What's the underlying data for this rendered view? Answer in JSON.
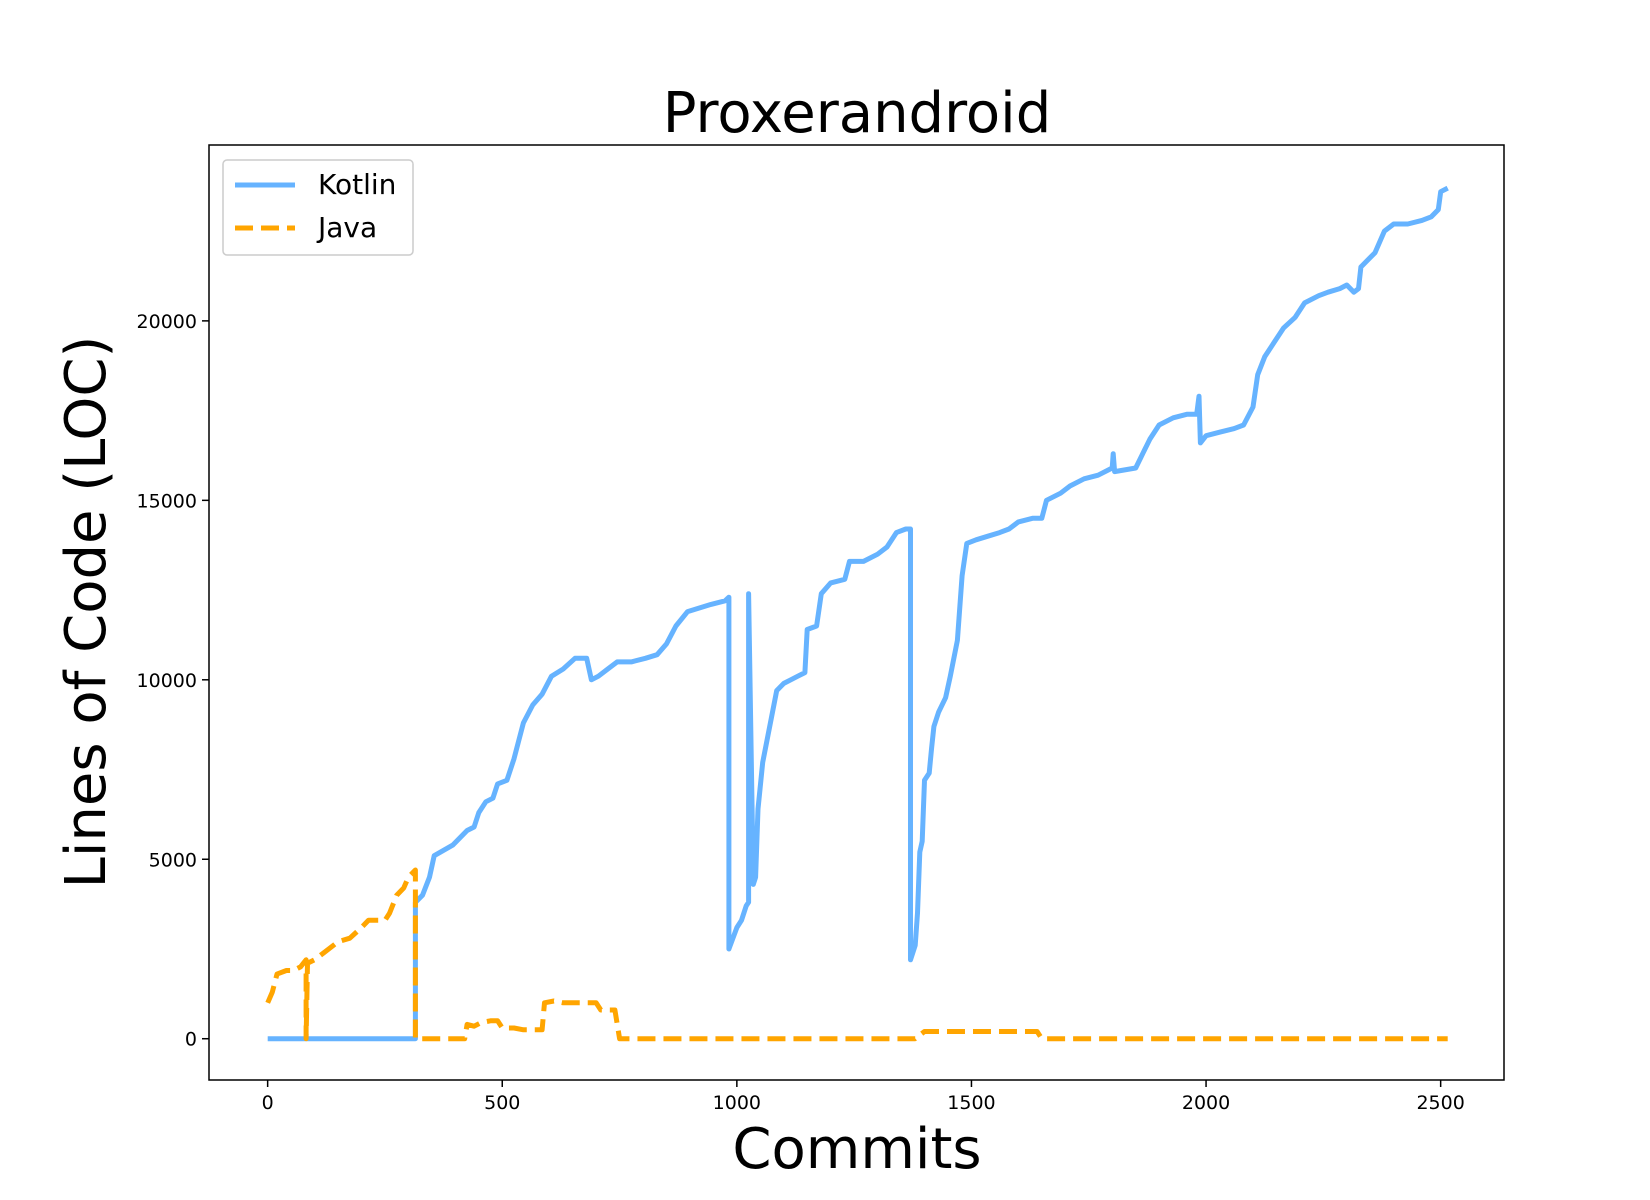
{
  "chart_data": {
    "type": "line",
    "title": "Proxerandroid",
    "xlabel": "Commits",
    "ylabel": "Lines of Code (LOC)",
    "xlim": [
      -125,
      2635
    ],
    "ylim": [
      -1150,
      24900
    ],
    "xticks": [
      0,
      500,
      1000,
      1500,
      2000,
      2500
    ],
    "yticks": [
      0,
      5000,
      10000,
      15000,
      20000
    ],
    "grid": false,
    "legend_position": "top-left",
    "series": [
      {
        "name": "Kotlin",
        "color": "#66b3ff",
        "style": "solid",
        "points": [
          [
            0,
            0
          ],
          [
            315,
            0
          ],
          [
            315,
            3800
          ],
          [
            330,
            4000
          ],
          [
            345,
            4500
          ],
          [
            355,
            5100
          ],
          [
            375,
            5250
          ],
          [
            395,
            5400
          ],
          [
            410,
            5600
          ],
          [
            425,
            5800
          ],
          [
            440,
            5900
          ],
          [
            450,
            6300
          ],
          [
            465,
            6600
          ],
          [
            480,
            6700
          ],
          [
            490,
            7100
          ],
          [
            510,
            7200
          ],
          [
            525,
            7800
          ],
          [
            545,
            8800
          ],
          [
            565,
            9300
          ],
          [
            585,
            9600
          ],
          [
            605,
            10100
          ],
          [
            630,
            10300
          ],
          [
            655,
            10600
          ],
          [
            680,
            10600
          ],
          [
            690,
            10000
          ],
          [
            705,
            10100
          ],
          [
            725,
            10300
          ],
          [
            745,
            10500
          ],
          [
            775,
            10500
          ],
          [
            805,
            10600
          ],
          [
            830,
            10700
          ],
          [
            850,
            11000
          ],
          [
            870,
            11500
          ],
          [
            895,
            11900
          ],
          [
            920,
            12000
          ],
          [
            945,
            12100
          ],
          [
            975,
            12200
          ],
          [
            983,
            12300
          ],
          [
            983,
            2500
          ],
          [
            1000,
            3100
          ],
          [
            1010,
            3300
          ],
          [
            1020,
            3700
          ],
          [
            1025,
            3800
          ],
          [
            1025,
            12400
          ],
          [
            1035,
            4300
          ],
          [
            1040,
            4500
          ],
          [
            1045,
            6400
          ],
          [
            1055,
            7700
          ],
          [
            1070,
            8700
          ],
          [
            1085,
            9700
          ],
          [
            1100,
            9900
          ],
          [
            1115,
            10000
          ],
          [
            1130,
            10100
          ],
          [
            1145,
            10200
          ],
          [
            1150,
            11400
          ],
          [
            1170,
            11500
          ],
          [
            1180,
            12400
          ],
          [
            1200,
            12700
          ],
          [
            1230,
            12800
          ],
          [
            1240,
            13300
          ],
          [
            1270,
            13300
          ],
          [
            1300,
            13500
          ],
          [
            1320,
            13700
          ],
          [
            1340,
            14100
          ],
          [
            1360,
            14200
          ],
          [
            1370,
            14200
          ],
          [
            1370,
            2200
          ],
          [
            1380,
            2600
          ],
          [
            1385,
            3500
          ],
          [
            1390,
            5200
          ],
          [
            1395,
            5500
          ],
          [
            1400,
            7200
          ],
          [
            1410,
            7400
          ],
          [
            1415,
            8100
          ],
          [
            1420,
            8700
          ],
          [
            1430,
            9100
          ],
          [
            1445,
            9500
          ],
          [
            1455,
            10100
          ],
          [
            1470,
            11100
          ],
          [
            1480,
            12900
          ],
          [
            1490,
            13800
          ],
          [
            1510,
            13900
          ],
          [
            1535,
            14000
          ],
          [
            1560,
            14100
          ],
          [
            1580,
            14200
          ],
          [
            1600,
            14400
          ],
          [
            1630,
            14500
          ],
          [
            1650,
            14500
          ],
          [
            1660,
            15000
          ],
          [
            1690,
            15200
          ],
          [
            1710,
            15400
          ],
          [
            1740,
            15600
          ],
          [
            1770,
            15700
          ],
          [
            1800,
            15900
          ],
          [
            1802,
            16300
          ],
          [
            1805,
            15800
          ],
          [
            1850,
            15900
          ],
          [
            1865,
            16300
          ],
          [
            1880,
            16700
          ],
          [
            1900,
            17100
          ],
          [
            1930,
            17300
          ],
          [
            1960,
            17400
          ],
          [
            1980,
            17400
          ],
          [
            1985,
            17900
          ],
          [
            1988,
            16600
          ],
          [
            2000,
            16800
          ],
          [
            2030,
            16900
          ],
          [
            2060,
            17000
          ],
          [
            2080,
            17100
          ],
          [
            2100,
            17600
          ],
          [
            2110,
            18500
          ],
          [
            2125,
            19000
          ],
          [
            2145,
            19400
          ],
          [
            2165,
            19800
          ],
          [
            2190,
            20100
          ],
          [
            2210,
            20500
          ],
          [
            2240,
            20700
          ],
          [
            2260,
            20800
          ],
          [
            2285,
            20900
          ],
          [
            2300,
            21000
          ],
          [
            2315,
            20800
          ],
          [
            2325,
            20900
          ],
          [
            2330,
            21500
          ],
          [
            2345,
            21700
          ],
          [
            2360,
            21900
          ],
          [
            2380,
            22500
          ],
          [
            2400,
            22700
          ],
          [
            2430,
            22700
          ],
          [
            2460,
            22800
          ],
          [
            2480,
            22900
          ],
          [
            2495,
            23100
          ],
          [
            2500,
            23600
          ],
          [
            2515,
            23700
          ]
        ]
      },
      {
        "name": "Java",
        "color": "#ffa500",
        "style": "dashed",
        "points": [
          [
            0,
            1000
          ],
          [
            10,
            1300
          ],
          [
            20,
            1800
          ],
          [
            40,
            1900
          ],
          [
            55,
            1900
          ],
          [
            70,
            2000
          ],
          [
            82,
            2200
          ],
          [
            82,
            0
          ],
          [
            85,
            2100
          ],
          [
            100,
            2200
          ],
          [
            120,
            2400
          ],
          [
            150,
            2700
          ],
          [
            175,
            2800
          ],
          [
            200,
            3100
          ],
          [
            215,
            3300
          ],
          [
            250,
            3300
          ],
          [
            260,
            3500
          ],
          [
            275,
            4000
          ],
          [
            290,
            4200
          ],
          [
            300,
            4500
          ],
          [
            315,
            4700
          ],
          [
            315,
            0
          ],
          [
            330,
            0
          ],
          [
            420,
            0
          ],
          [
            425,
            400
          ],
          [
            440,
            350
          ],
          [
            455,
            450
          ],
          [
            475,
            500
          ],
          [
            490,
            500
          ],
          [
            500,
            300
          ],
          [
            525,
            300
          ],
          [
            545,
            250
          ],
          [
            585,
            250
          ],
          [
            590,
            1000
          ],
          [
            610,
            1050
          ],
          [
            630,
            1000
          ],
          [
            700,
            1000
          ],
          [
            710,
            800
          ],
          [
            740,
            800
          ],
          [
            750,
            0
          ],
          [
            850,
            0
          ],
          [
            1000,
            0
          ],
          [
            1380,
            0
          ],
          [
            1400,
            200
          ],
          [
            1500,
            200
          ],
          [
            1600,
            200
          ],
          [
            1640,
            200
          ],
          [
            1650,
            0
          ],
          [
            2000,
            0
          ],
          [
            2515,
            0
          ]
        ]
      }
    ]
  }
}
